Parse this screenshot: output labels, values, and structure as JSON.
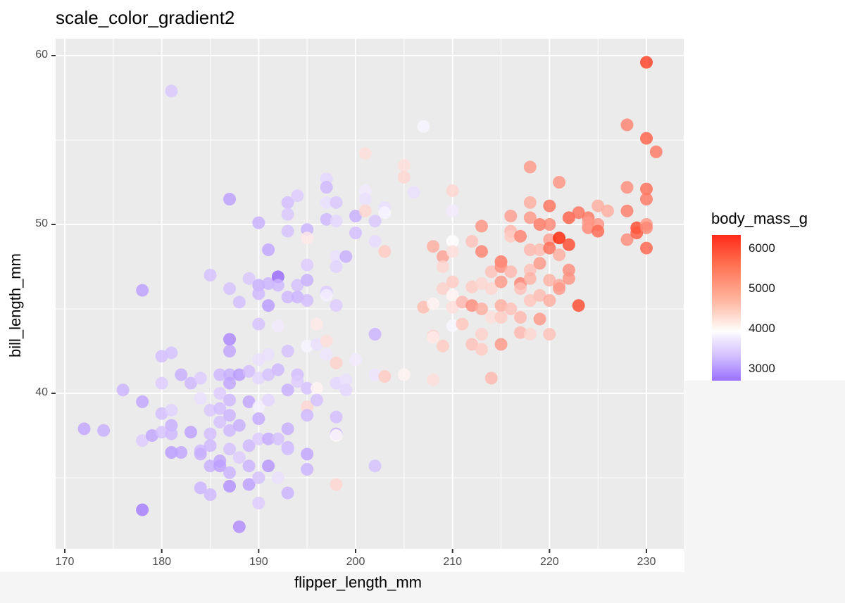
{
  "chart_data": {
    "type": "scatter",
    "title": "scale_color_gradient2",
    "xlabel": "flipper_length_mm",
    "ylabel": "bill_length_mm",
    "xlim": [
      169,
      233
    ],
    "ylim": [
      31,
      61
    ],
    "x_ticks": [
      170,
      180,
      190,
      200,
      210,
      220,
      230
    ],
    "y_ticks": [
      40,
      50,
      60
    ],
    "grid": true,
    "legend": {
      "title": "body_mass_g",
      "position": "right",
      "type": "colorbar",
      "labels": [
        "6000",
        "5000",
        "4000",
        "3000"
      ],
      "low_color": "#9966ff",
      "mid_color": "#ffffff",
      "high_color": "#ff2200",
      "midpoint": 4200
    },
    "points": [
      [
        172,
        37.9,
        3300
      ],
      [
        174,
        37.8,
        3400
      ],
      [
        176,
        40.2,
        3450
      ],
      [
        178,
        46.1,
        3250
      ],
      [
        178,
        39.5,
        3300
      ],
      [
        178,
        33.1,
        2900
      ],
      [
        178,
        37.2,
        3700
      ],
      [
        179,
        37.5,
        3300
      ],
      [
        180,
        42.2,
        3550
      ],
      [
        180,
        40.6,
        3700
      ],
      [
        180,
        38.8,
        3550
      ],
      [
        180,
        37.7,
        3600
      ],
      [
        181,
        42.4,
        3600
      ],
      [
        181,
        39.0,
        3750
      ],
      [
        181,
        38.1,
        3400
      ],
      [
        181,
        37.6,
        3500
      ],
      [
        181,
        36.5,
        3200
      ],
      [
        181,
        57.9,
        3650
      ],
      [
        182,
        41.1,
        3400
      ],
      [
        182,
        36.5,
        3300
      ],
      [
        183,
        40.6,
        3500
      ],
      [
        183,
        37.7,
        3250
      ],
      [
        184,
        40.9,
        3700
      ],
      [
        184,
        39.7,
        3900
      ],
      [
        184,
        36.6,
        3500
      ],
      [
        184,
        36.4,
        3400
      ],
      [
        184,
        34.4,
        3450
      ],
      [
        185,
        47.0,
        3600
      ],
      [
        185,
        39.0,
        3650
      ],
      [
        185,
        37.6,
        3550
      ],
      [
        185,
        36.9,
        3500
      ],
      [
        185,
        35.7,
        3400
      ],
      [
        185,
        34.0,
        3500
      ],
      [
        186,
        41.1,
        3500
      ],
      [
        186,
        40.0,
        3700
      ],
      [
        186,
        39.1,
        3550
      ],
      [
        186,
        38.3,
        3600
      ],
      [
        186,
        36.0,
        3300
      ],
      [
        186,
        35.7,
        3250
      ],
      [
        187,
        51.5,
        3250
      ],
      [
        187,
        46.2,
        3600
      ],
      [
        187,
        43.2,
        3000
      ],
      [
        187,
        42.5,
        3300
      ],
      [
        187,
        41.1,
        3400
      ],
      [
        187,
        40.6,
        3300
      ],
      [
        187,
        39.6,
        3500
      ],
      [
        187,
        38.7,
        3450
      ],
      [
        187,
        37.8,
        3500
      ],
      [
        187,
        36.7,
        3600
      ],
      [
        187,
        35.3,
        3450
      ],
      [
        187,
        34.5,
        3100
      ],
      [
        188,
        45.4,
        3550
      ],
      [
        188,
        41.1,
        3200
      ],
      [
        188,
        38.1,
        3400
      ],
      [
        188,
        36.2,
        3700
      ],
      [
        188,
        32.1,
        3050
      ],
      [
        189,
        46.8,
        3650
      ],
      [
        189,
        41.3,
        3550
      ],
      [
        189,
        39.5,
        3300
      ],
      [
        189,
        36.9,
        3500
      ],
      [
        189,
        35.7,
        3450
      ],
      [
        189,
        34.6,
        3250
      ],
      [
        190,
        50.1,
        3400
      ],
      [
        190,
        46.4,
        3400
      ],
      [
        190,
        45.9,
        3500
      ],
      [
        190,
        44.1,
        3600
      ],
      [
        190,
        42.0,
        3900
      ],
      [
        190,
        40.9,
        3800
      ],
      [
        190,
        39.2,
        4050
      ],
      [
        190,
        38.5,
        3350
      ],
      [
        190,
        37.3,
        3700
      ],
      [
        190,
        35.0,
        3600
      ],
      [
        190,
        33.5,
        3700
      ],
      [
        191,
        48.5,
        3300
      ],
      [
        191,
        46.5,
        3450
      ],
      [
        191,
        45.2,
        3200
      ],
      [
        191,
        42.3,
        3900
      ],
      [
        191,
        41.1,
        3600
      ],
      [
        191,
        39.6,
        3800
      ],
      [
        191,
        37.3,
        3350
      ],
      [
        191,
        35.7,
        3150
      ],
      [
        192,
        46.9,
        2700
      ],
      [
        192,
        46.4,
        3500
      ],
      [
        192,
        44.0,
        4000
      ],
      [
        192,
        41.4,
        3500
      ],
      [
        192,
        37.3,
        3600
      ],
      [
        192,
        35.0,
        3900
      ],
      [
        193,
        51.3,
        3550
      ],
      [
        193,
        50.6,
        3650
      ],
      [
        193,
        49.6,
        3600
      ],
      [
        193,
        45.7,
        3500
      ],
      [
        193,
        42.5,
        3600
      ],
      [
        193,
        40.2,
        3400
      ],
      [
        193,
        37.9,
        3400
      ],
      [
        193,
        36.8,
        3500
      ],
      [
        193,
        36.7,
        3600
      ],
      [
        193,
        34.1,
        3450
      ],
      [
        194,
        51.7,
        3700
      ],
      [
        194,
        46.4,
        3600
      ],
      [
        194,
        45.7,
        3450
      ],
      [
        194,
        41.1,
        3550
      ],
      [
        194,
        40.7,
        3700
      ],
      [
        195,
        49.7,
        3450
      ],
      [
        195,
        49.2,
        4400
      ],
      [
        195,
        47.6,
        3700
      ],
      [
        195,
        46.7,
        3400
      ],
      [
        195,
        45.5,
        3550
      ],
      [
        195,
        42.8,
        4100
      ],
      [
        195,
        40.3,
        3600
      ],
      [
        195,
        39.2,
        4600
      ],
      [
        195,
        38.7,
        3500
      ],
      [
        195,
        36.4,
        3300
      ],
      [
        195,
        35.5,
        3450
      ],
      [
        196,
        44.1,
        4400
      ],
      [
        196,
        42.9,
        3900
      ],
      [
        196,
        40.3,
        4300
      ],
      [
        196,
        39.6,
        3600
      ],
      [
        197,
        52.7,
        3800
      ],
      [
        197,
        52.2,
        3500
      ],
      [
        197,
        51.3,
        3900
      ],
      [
        197,
        50.3,
        3500
      ],
      [
        197,
        46.0,
        3700
      ],
      [
        197,
        45.8,
        4050
      ],
      [
        197,
        43.1,
        4500
      ],
      [
        197,
        42.3,
        3950
      ],
      [
        198,
        51.3,
        3650
      ],
      [
        198,
        50.2,
        3800
      ],
      [
        198,
        48.1,
        3900
      ],
      [
        198,
        47.5,
        3750
      ],
      [
        198,
        45.2,
        3700
      ],
      [
        198,
        41.8,
        4650
      ],
      [
        198,
        40.6,
        3800
      ],
      [
        198,
        38.6,
        3550
      ],
      [
        198,
        37.6,
        3450
      ],
      [
        198,
        37.5,
        4250
      ],
      [
        198,
        34.6,
        4600
      ],
      [
        199,
        48.1,
        3400
      ],
      [
        199,
        40.8,
        3900
      ],
      [
        199,
        40.2,
        3800
      ],
      [
        200,
        50.5,
        3400
      ],
      [
        200,
        49.5,
        3550
      ],
      [
        200,
        42.0,
        4000
      ],
      [
        201,
        54.2,
        4500
      ],
      [
        201,
        52.0,
        4000
      ],
      [
        201,
        51.5,
        3900
      ],
      [
        201,
        50.8,
        4600
      ],
      [
        202,
        50.2,
        3650
      ],
      [
        202,
        49.0,
        3850
      ],
      [
        202,
        43.5,
        3450
      ],
      [
        202,
        41.1,
        3950
      ],
      [
        202,
        35.7,
        3600
      ],
      [
        203,
        51.0,
        3900
      ],
      [
        203,
        50.7,
        4100
      ],
      [
        203,
        48.4,
        4700
      ],
      [
        203,
        41.0,
        4700
      ],
      [
        205,
        53.5,
        4500
      ],
      [
        205,
        52.8,
        4600
      ],
      [
        205,
        41.1,
        4300
      ],
      [
        206,
        51.9,
        3900
      ],
      [
        207,
        55.8,
        4100
      ],
      [
        207,
        45.1,
        4850
      ],
      [
        208,
        48.7,
        5000
      ],
      [
        208,
        45.3,
        4300
      ],
      [
        208,
        43.4,
        4600
      ],
      [
        208,
        43.3,
        4400
      ],
      [
        208,
        40.8,
        4500
      ],
      [
        209,
        48.1,
        5100
      ],
      [
        209,
        47.5,
        4600
      ],
      [
        209,
        46.2,
        4650
      ],
      [
        209,
        42.8,
        4700
      ],
      [
        210,
        52.0,
        4600
      ],
      [
        210,
        50.8,
        4000
      ],
      [
        210,
        49.0,
        4200
      ],
      [
        210,
        48.4,
        4500
      ],
      [
        210,
        46.6,
        4700
      ],
      [
        210,
        45.8,
        4300
      ],
      [
        210,
        45.1,
        4500
      ],
      [
        210,
        44.0,
        4100
      ],
      [
        211,
        45.4,
        4900
      ],
      [
        211,
        44.1,
        4750
      ],
      [
        212,
        49.0,
        4800
      ],
      [
        212,
        46.3,
        4700
      ],
      [
        212,
        45.2,
        5300
      ],
      [
        212,
        42.9,
        4800
      ],
      [
        213,
        49.9,
        5250
      ],
      [
        213,
        48.4,
        5400
      ],
      [
        213,
        46.5,
        4600
      ],
      [
        213,
        45.0,
        5000
      ],
      [
        213,
        43.5,
        4650
      ],
      [
        213,
        42.6,
        4700
      ],
      [
        214,
        47.2,
        4800
      ],
      [
        214,
        46.2,
        4600
      ],
      [
        214,
        44.5,
        4500
      ],
      [
        214,
        40.9,
        4900
      ],
      [
        215,
        47.8,
        5500
      ],
      [
        215,
        47.5,
        5300
      ],
      [
        215,
        46.6,
        5200
      ],
      [
        215,
        45.2,
        5000
      ],
      [
        215,
        44.5,
        4700
      ],
      [
        215,
        42.9,
        5200
      ],
      [
        216,
        50.5,
        5150
      ],
      [
        216,
        49.6,
        4900
      ],
      [
        216,
        49.3,
        4700
      ],
      [
        216,
        47.2,
        4900
      ],
      [
        216,
        45.0,
        4800
      ],
      [
        217,
        49.3,
        5400
      ],
      [
        217,
        46.5,
        5400
      ],
      [
        217,
        46.2,
        4800
      ],
      [
        217,
        44.5,
        4900
      ],
      [
        217,
        43.6,
        4900
      ],
      [
        218,
        53.4,
        5200
      ],
      [
        218,
        51.3,
        5000
      ],
      [
        218,
        50.4,
        5200
      ],
      [
        218,
        48.5,
        4900
      ],
      [
        218,
        47.3,
        4800
      ],
      [
        218,
        46.8,
        4950
      ],
      [
        218,
        45.5,
        4750
      ],
      [
        218,
        43.5,
        4600
      ],
      [
        219,
        50.0,
        5500
      ],
      [
        219,
        48.5,
        4850
      ],
      [
        219,
        47.7,
        5200
      ],
      [
        219,
        45.8,
        4850
      ],
      [
        219,
        44.4,
        5200
      ],
      [
        220,
        51.1,
        5550
      ],
      [
        220,
        50.0,
        5350
      ],
      [
        220,
        49.1,
        5150
      ],
      [
        220,
        48.6,
        5600
      ],
      [
        220,
        46.7,
        4950
      ],
      [
        220,
        45.5,
        5000
      ],
      [
        220,
        43.5,
        4800
      ],
      [
        221,
        52.5,
        5250
      ],
      [
        221,
        49.2,
        6300
      ],
      [
        221,
        48.2,
        5000
      ],
      [
        221,
        46.4,
        5050
      ],
      [
        221,
        46.2,
        5200
      ],
      [
        222,
        50.4,
        5750
      ],
      [
        222,
        48.8,
        5950
      ],
      [
        222,
        47.3,
        5300
      ],
      [
        222,
        46.8,
        5250
      ],
      [
        223,
        50.7,
        5550
      ],
      [
        223,
        45.2,
        5950
      ],
      [
        224,
        50.4,
        5500
      ],
      [
        224,
        49.8,
        5350
      ],
      [
        224,
        50.1,
        5150
      ],
      [
        225,
        51.1,
        5000
      ],
      [
        225,
        50.0,
        5250
      ],
      [
        225,
        49.6,
        5650
      ],
      [
        226,
        50.8,
        5000
      ],
      [
        228,
        55.9,
        5400
      ],
      [
        228,
        52.2,
        5300
      ],
      [
        228,
        50.8,
        5450
      ],
      [
        228,
        49.1,
        5300
      ],
      [
        229,
        49.8,
        5950
      ],
      [
        229,
        49.5,
        5800
      ],
      [
        230,
        59.6,
        6050
      ],
      [
        230,
        55.1,
        5750
      ],
      [
        230,
        52.1,
        5600
      ],
      [
        230,
        51.5,
        5500
      ],
      [
        230,
        50.0,
        5200
      ],
      [
        230,
        49.8,
        5350
      ],
      [
        230,
        48.6,
        5700
      ],
      [
        231,
        54.3,
        5500
      ]
    ]
  }
}
